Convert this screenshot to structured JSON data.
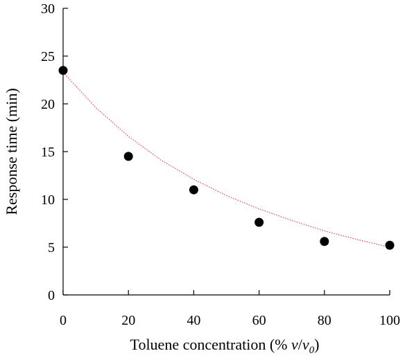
{
  "chart_data": {
    "type": "scatter",
    "title": "",
    "xlabel": "Toluene concentration (% ",
    "xlabel_italic_var": "v",
    "xlabel_slash": "/",
    "xlabel_italic_sub_base": "v",
    "xlabel_sub": "0",
    "xlabel_close": ")",
    "ylabel": "Response time (min)",
    "xlim": [
      0,
      100
    ],
    "ylim": [
      0,
      30
    ],
    "xticks": [
      0,
      20,
      40,
      60,
      80,
      100
    ],
    "yticks": [
      0,
      5,
      10,
      15,
      20,
      25,
      30
    ],
    "grid": false,
    "series": [
      {
        "x": [
          0,
          20,
          40,
          60,
          80,
          100
        ],
        "y": [
          23.5,
          14.5,
          11.0,
          7.6,
          5.6,
          5.2
        ],
        "color": "#000000"
      }
    ],
    "trendline": {
      "type": "exponential-decay",
      "color": "#e8413a",
      "style": "dotted",
      "x": [
        0,
        10,
        20,
        30,
        40,
        50,
        60,
        70,
        80,
        90,
        100
      ],
      "y": [
        23.3,
        19.6,
        16.6,
        14.1,
        12.1,
        10.4,
        9.0,
        7.8,
        6.7,
        5.8,
        5.0
      ]
    }
  }
}
